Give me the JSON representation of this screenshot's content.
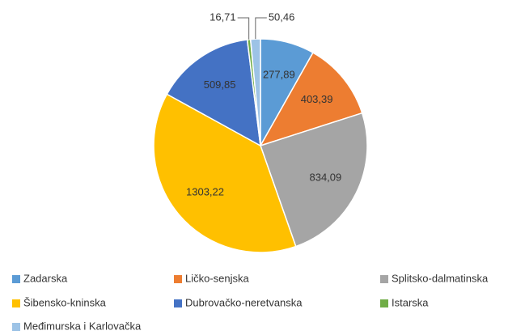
{
  "chart_data": {
    "type": "pie",
    "categories": [
      "Zadarska",
      "Ličko-senjska",
      "Splitsko-dalmatinska",
      "Šibensko-kninska",
      "Dubrovačko-neretvanska",
      "Istarska",
      "Međimurska i Karlovačka"
    ],
    "values": [
      277.89,
      403.39,
      834.09,
      1303.22,
      509.85,
      16.71,
      50.46
    ],
    "value_labels": [
      "277,89",
      "403,39",
      "834,09",
      "1303,22",
      "509,85",
      "16,71",
      "50,46"
    ],
    "colors": [
      "#5b9bd5",
      "#ed7d31",
      "#a5a5a5",
      "#ffc000",
      "#4472c4",
      "#70ad47",
      "#9dc3e6"
    ],
    "legend": "bottom"
  }
}
